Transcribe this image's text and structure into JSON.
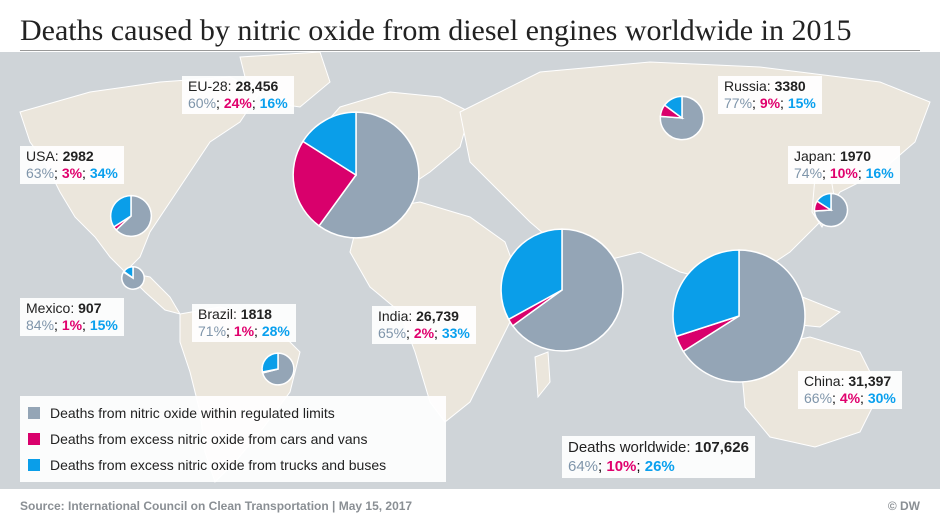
{
  "title": "Deaths caused by nitric oxide from diesel engines worldwide in 2015",
  "colors": {
    "regulated": "#94a5b6",
    "cars": "#d9006c",
    "trucks": "#0a9ee9",
    "map_bg": "#cfd4d8",
    "land": "#ebe6dc"
  },
  "legend": [
    {
      "label": "Deaths from nitric oxide within regulated limits",
      "color": "#94a5b6"
    },
    {
      "label": "Deaths from excess nitric oxide from cars and vans",
      "color": "#d9006c"
    },
    {
      "label": "Deaths from excess nitric oxide from trucks and buses",
      "color": "#0a9ee9"
    }
  ],
  "regions": [
    {
      "key": "eu",
      "name": "EU-28:",
      "value": "28,456",
      "p1": "60%",
      "p2": "24%",
      "p3": "16%"
    },
    {
      "key": "usa",
      "name": "USA:",
      "value": "2982",
      "p1": "63%",
      "p2": "3%",
      "p3": "34%"
    },
    {
      "key": "mexico",
      "name": "Mexico:",
      "value": "907",
      "p1": "84%",
      "p2": "1%",
      "p3": "15%"
    },
    {
      "key": "brazil",
      "name": "Brazil:",
      "value": "1818",
      "p1": "71%",
      "p2": "1%",
      "p3": "28%"
    },
    {
      "key": "india",
      "name": "India:",
      "value": "26,739",
      "p1": "65%",
      "p2": "2%",
      "p3": "33%"
    },
    {
      "key": "russia",
      "name": "Russia:",
      "value": "3380",
      "p1": "77%",
      "p2": "9%",
      "p3": "15%"
    },
    {
      "key": "japan",
      "name": "Japan:",
      "value": "1970",
      "p1": "74%",
      "p2": "10%",
      "p3": "16%"
    },
    {
      "key": "china",
      "name": "China:",
      "value": "31,397",
      "p1": "66%",
      "p2": "4%",
      "p3": "30%"
    }
  ],
  "worldwide": {
    "name": "Deaths worldwide:",
    "value": "107,626",
    "p1": "64%",
    "p2": "10%",
    "p3": "26%"
  },
  "source": "Source: International Council on Clean Transportation | May 15, 2017",
  "credit": "© DW",
  "chart_data": {
    "type": "pie",
    "title": "Deaths caused by nitric oxide from diesel engines worldwide in 2015",
    "categories": [
      "Deaths from nitric oxide within regulated limits",
      "Deaths from excess nitric oxide from cars and vans",
      "Deaths from excess nitric oxide from trucks and buses"
    ],
    "series": [
      {
        "name": "EU-28",
        "total": 28456,
        "values": [
          60,
          24,
          16
        ]
      },
      {
        "name": "USA",
        "total": 2982,
        "values": [
          63,
          3,
          34
        ]
      },
      {
        "name": "Mexico",
        "total": 907,
        "values": [
          84,
          1,
          15
        ]
      },
      {
        "name": "Brazil",
        "total": 1818,
        "values": [
          71,
          1,
          28
        ]
      },
      {
        "name": "India",
        "total": 26739,
        "values": [
          65,
          2,
          33
        ]
      },
      {
        "name": "Russia",
        "total": 3380,
        "values": [
          77,
          9,
          15
        ]
      },
      {
        "name": "Japan",
        "total": 1970,
        "values": [
          74,
          10,
          16
        ]
      },
      {
        "name": "China",
        "total": 31397,
        "values": [
          66,
          4,
          30
        ]
      }
    ],
    "worldwide": {
      "total": 107626,
      "values": [
        64,
        10,
        26
      ]
    }
  }
}
